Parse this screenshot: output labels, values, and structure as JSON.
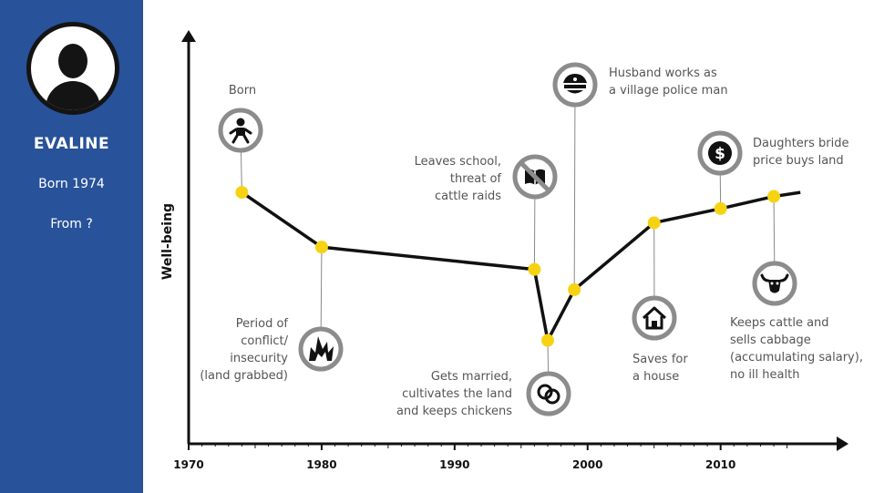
{
  "sidebar": {
    "name": "EVALINE",
    "born": "Born 1974",
    "from": "From ?"
  },
  "colors": {
    "sidebar": "#28529a",
    "point": "#f6d312",
    "line": "#111111",
    "icon_ring": "#8c8c8c",
    "text": "#555555"
  },
  "chart_data": {
    "type": "line",
    "xlabel": "",
    "ylabel": "Well-being",
    "xlim": [
      1970,
      2019
    ],
    "ylim": [
      0,
      10
    ],
    "x_ticks": [
      1970,
      1980,
      1990,
      2000,
      2010
    ],
    "series": [
      {
        "x": [
          1974,
          1980,
          1996,
          1997,
          1999,
          2005,
          2010,
          2014,
          2016
        ],
        "values": [
          6.2,
          4.85,
          4.3,
          2.55,
          3.8,
          5.45,
          5.8,
          6.1,
          6.2
        ]
      }
    ],
    "annotations": [
      {
        "x": 1974,
        "text": "Born",
        "icon": "baby-icon"
      },
      {
        "x": 1980,
        "text": "Period of\nconflict/\ninsecurity\n(land grabbed)",
        "icon": "explosion-icon"
      },
      {
        "x": 1996,
        "text": "Leaves school,\nthreat of\ncattle raids",
        "icon": "no-book-icon"
      },
      {
        "x": 1997,
        "text": "Gets married,\ncultivates the land\nand keeps chickens",
        "icon": "rings-icon"
      },
      {
        "x": 1999,
        "text": "Husband works as\na village police man",
        "icon": "police-cap-icon"
      },
      {
        "x": 2005,
        "text": "Saves for\na house",
        "icon": "house-icon"
      },
      {
        "x": 2010,
        "text": "Daughters bride\nprice buys land",
        "icon": "dollar-icon"
      },
      {
        "x": 2014,
        "text": "Keeps cattle and\nsells cabbage\n(accumulating salary),\nno ill health",
        "icon": "cattle-icon"
      }
    ]
  }
}
